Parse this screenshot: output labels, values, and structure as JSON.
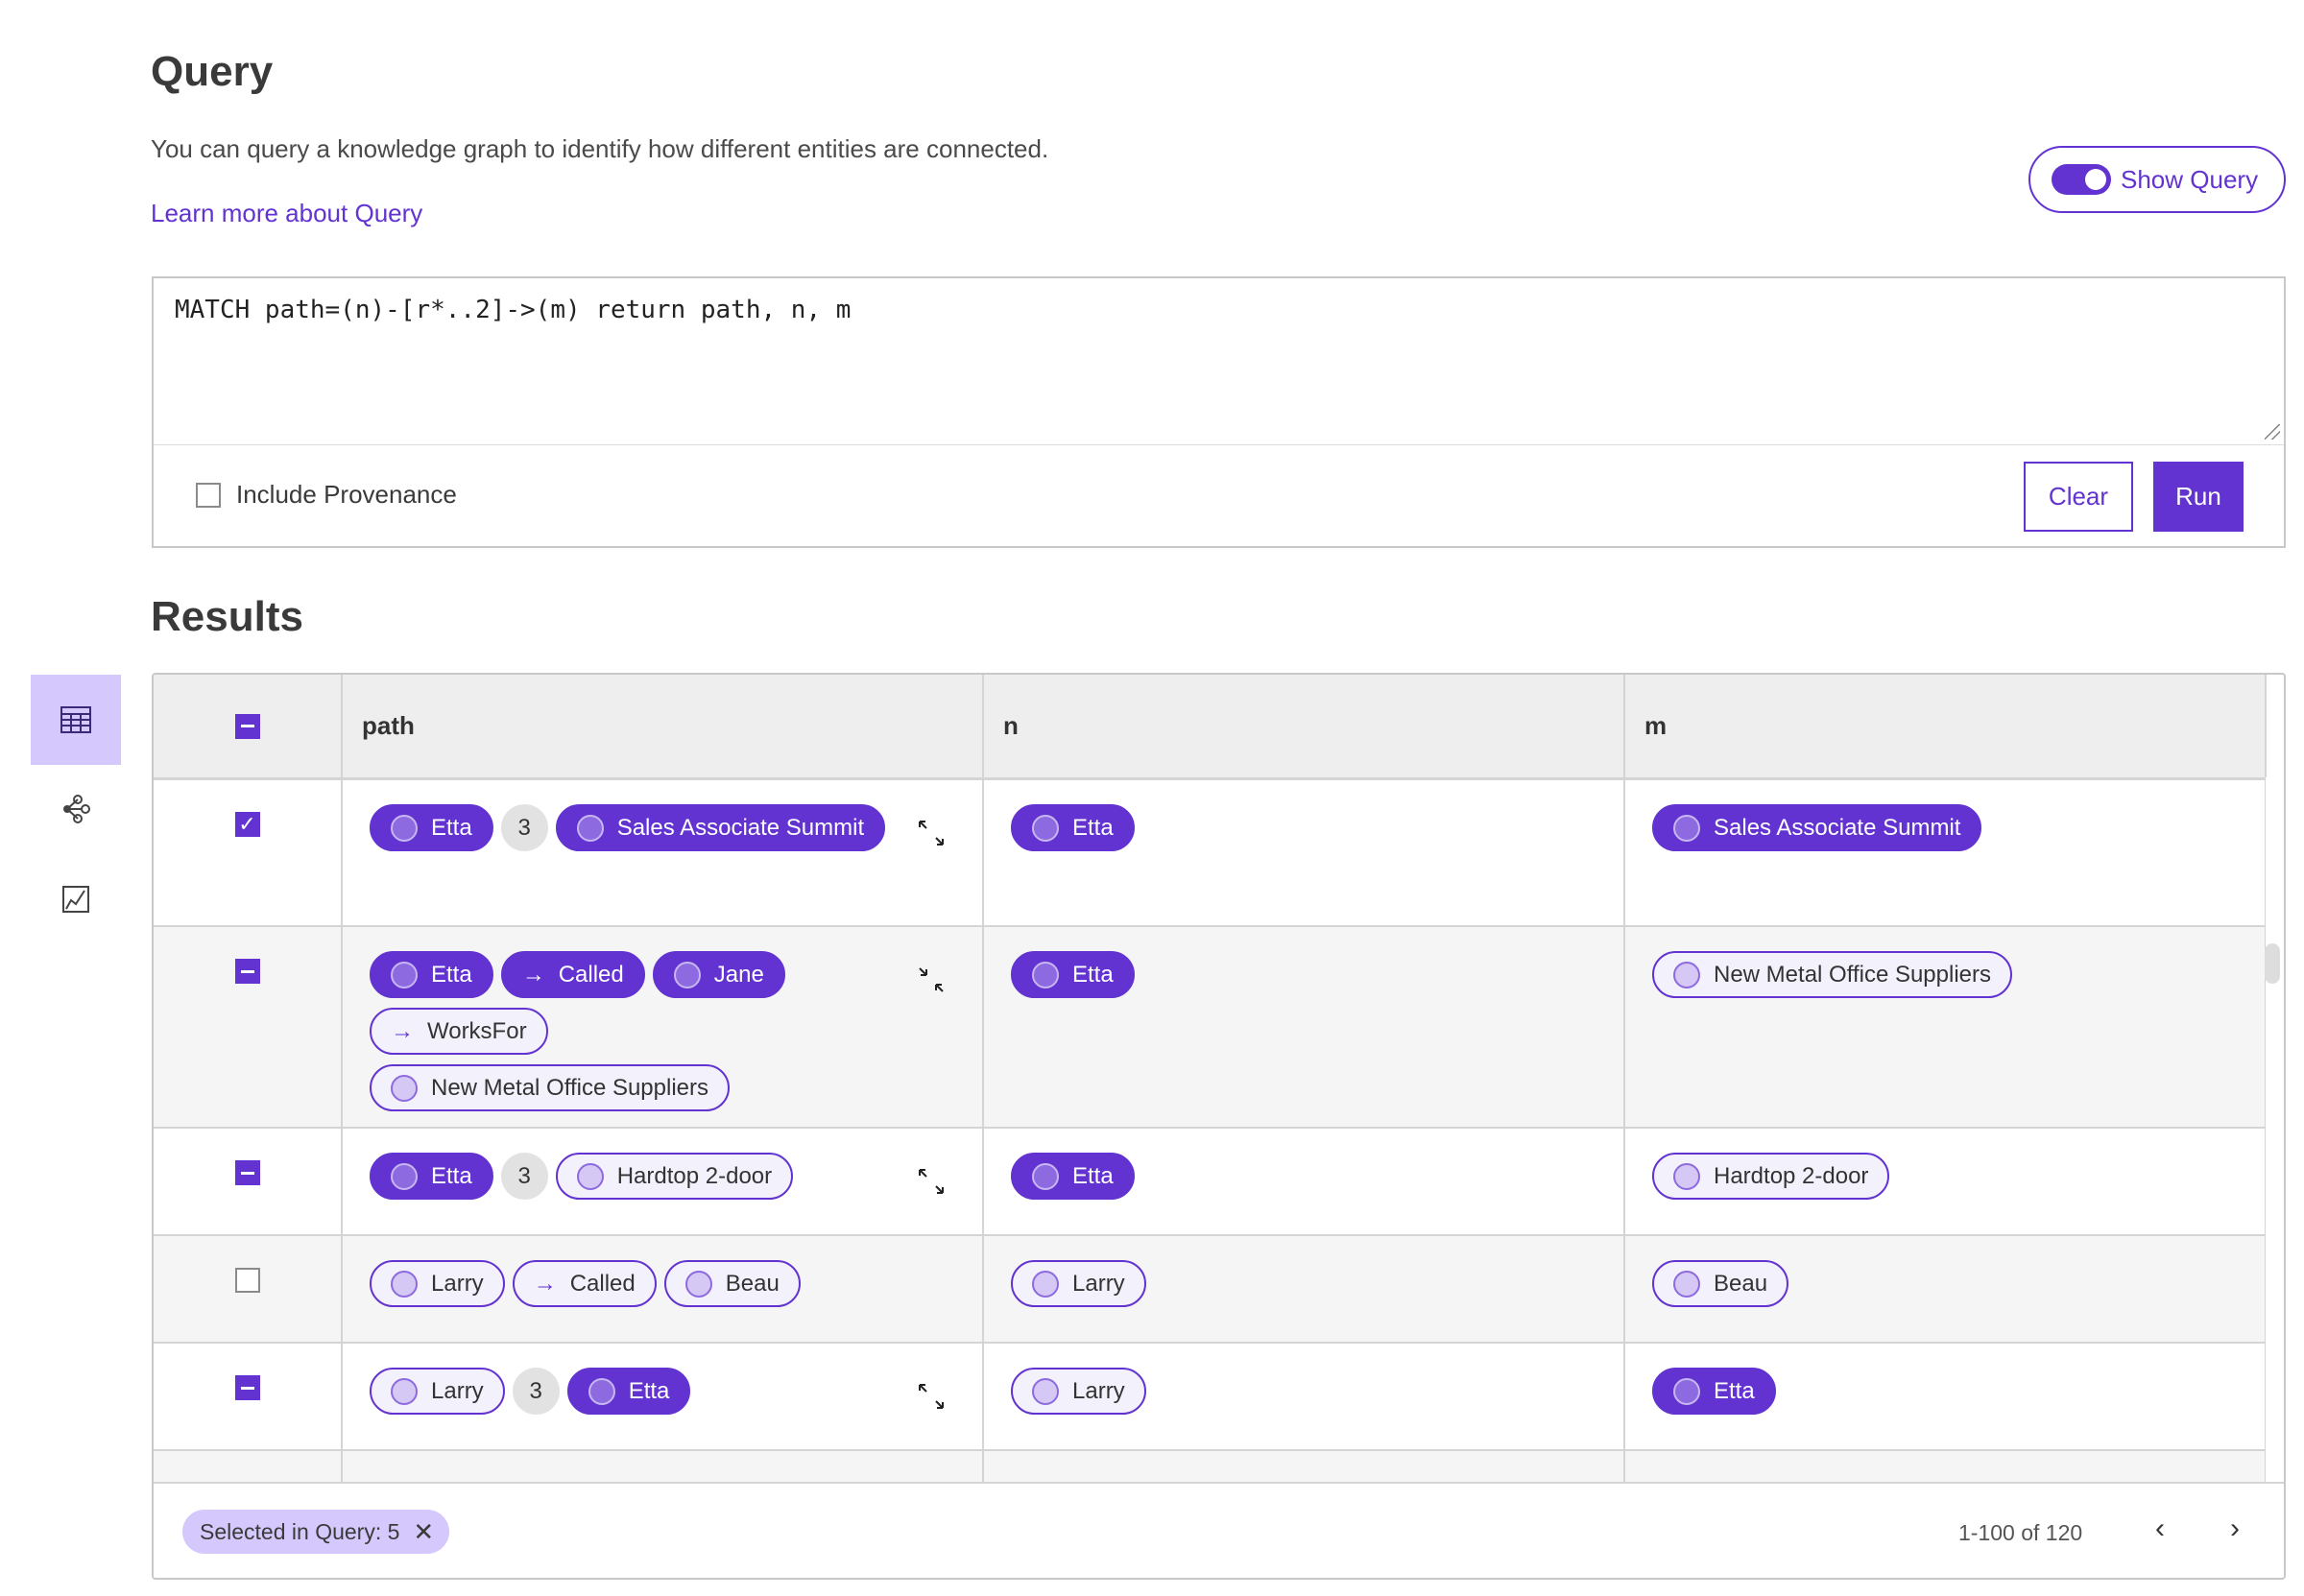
{
  "header": {
    "title": "Query",
    "description": "You can query a knowledge graph to identify how different entities are connected.",
    "learn_more": "Learn more about Query",
    "show_query_label": "Show Query",
    "show_query_on": true
  },
  "query": {
    "text": "MATCH path=(n)-[r*..2]->(m) return path, n, m",
    "include_provenance_label": "Include Provenance",
    "include_provenance": false,
    "clear_label": "Clear",
    "run_label": "Run"
  },
  "results": {
    "title": "Results",
    "sidebar": [
      {
        "icon": "table-icon",
        "active": true
      },
      {
        "icon": "graph-icon",
        "active": false
      },
      {
        "icon": "chart-icon",
        "active": false
      }
    ],
    "columns": [
      "path",
      "n",
      "m"
    ],
    "header_checkbox": "indeterminate",
    "rows": [
      {
        "check": "checked",
        "expand": "expand",
        "path": [
          {
            "t": "node",
            "label": "Etta",
            "sel": true
          },
          {
            "t": "count",
            "label": "3"
          },
          {
            "t": "node",
            "label": "Sales Associate Summit",
            "sel": true
          }
        ],
        "n": [
          {
            "t": "node",
            "label": "Etta",
            "sel": true
          }
        ],
        "m": [
          {
            "t": "node",
            "label": "Sales Associate Summit",
            "sel": true
          }
        ]
      },
      {
        "check": "indeterminate",
        "expand": "collapse",
        "path": [
          {
            "t": "node",
            "label": "Etta",
            "sel": true
          },
          {
            "t": "edge",
            "label": "Called",
            "sel": true
          },
          {
            "t": "node",
            "label": "Jane",
            "sel": true
          },
          {
            "t": "edge",
            "label": "WorksFor",
            "sel": false
          },
          {
            "t": "node",
            "label": "New Metal Office Suppliers",
            "sel": false
          }
        ],
        "n": [
          {
            "t": "node",
            "label": "Etta",
            "sel": true
          }
        ],
        "m": [
          {
            "t": "node",
            "label": "New Metal Office Suppliers",
            "sel": false
          }
        ]
      },
      {
        "check": "indeterminate",
        "expand": "expand",
        "path": [
          {
            "t": "node",
            "label": "Etta",
            "sel": true
          },
          {
            "t": "count",
            "label": "3"
          },
          {
            "t": "node",
            "label": "Hardtop 2-door",
            "sel": false
          }
        ],
        "n": [
          {
            "t": "node",
            "label": "Etta",
            "sel": true
          }
        ],
        "m": [
          {
            "t": "node",
            "label": "Hardtop 2-door",
            "sel": false
          }
        ]
      },
      {
        "check": "unchecked",
        "expand": "",
        "path": [
          {
            "t": "node",
            "label": "Larry",
            "sel": false
          },
          {
            "t": "edge",
            "label": "Called",
            "sel": false
          },
          {
            "t": "node",
            "label": "Beau",
            "sel": false
          }
        ],
        "n": [
          {
            "t": "node",
            "label": "Larry",
            "sel": false
          }
        ],
        "m": [
          {
            "t": "node",
            "label": "Beau",
            "sel": false
          }
        ]
      },
      {
        "check": "indeterminate",
        "expand": "expand",
        "path": [
          {
            "t": "node",
            "label": "Larry",
            "sel": false
          },
          {
            "t": "count",
            "label": "3"
          },
          {
            "t": "node",
            "label": "Etta",
            "sel": true
          }
        ],
        "n": [
          {
            "t": "node",
            "label": "Larry",
            "sel": false
          }
        ],
        "m": [
          {
            "t": "node",
            "label": "Etta",
            "sel": true
          }
        ]
      }
    ],
    "selected_label": "Selected in Query: 5",
    "pagination": "1-100 of 120"
  },
  "colors": {
    "accent": "#6233d0",
    "accent_light": "#d5c8fc",
    "row_alt": "#f5f5f5"
  }
}
